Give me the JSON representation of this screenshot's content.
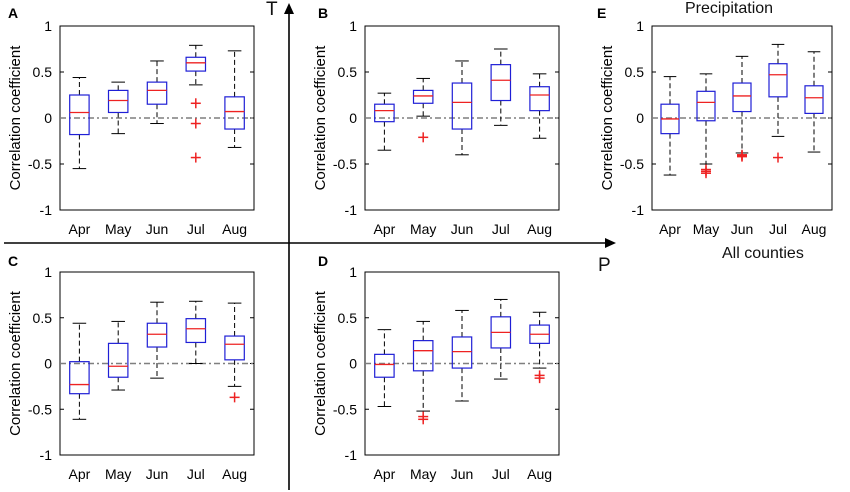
{
  "axis_labels": {
    "t": "T",
    "p": "P"
  },
  "annotations": {
    "precipitation": "Precipitation",
    "all_counties": "All counties"
  },
  "chart_data": [
    {
      "panel": "A",
      "type": "boxplot",
      "ylabel": "Correlation coefficient",
      "ylim": [
        -1,
        1
      ],
      "yticks": [
        -1,
        -0.5,
        0,
        0.5,
        1
      ],
      "categories": [
        "Apr",
        "May",
        "Jun",
        "Jul",
        "Aug"
      ],
      "reference_line": 0,
      "boxes": [
        {
          "whisker_low": -0.55,
          "q1": -0.18,
          "median": 0.06,
          "q3": 0.25,
          "whisker_high": 0.44,
          "outliers": []
        },
        {
          "whisker_low": -0.17,
          "q1": 0.06,
          "median": 0.19,
          "q3": 0.3,
          "whisker_high": 0.39,
          "outliers": []
        },
        {
          "whisker_low": -0.06,
          "q1": 0.15,
          "median": 0.3,
          "q3": 0.39,
          "whisker_high": 0.62,
          "outliers": []
        },
        {
          "whisker_low": 0.36,
          "q1": 0.51,
          "median": 0.6,
          "q3": 0.66,
          "whisker_high": 0.79,
          "outliers": [
            0.16,
            -0.06,
            -0.43
          ]
        },
        {
          "whisker_low": -0.32,
          "q1": -0.12,
          "median": 0.07,
          "q3": 0.23,
          "whisker_high": 0.73,
          "outliers": []
        }
      ]
    },
    {
      "panel": "B",
      "type": "boxplot",
      "ylabel": "Correlation coefficient",
      "ylim": [
        -1,
        1
      ],
      "yticks": [
        -1,
        -0.5,
        0,
        0.5,
        1
      ],
      "categories": [
        "Apr",
        "May",
        "Jun",
        "Jul",
        "Aug"
      ],
      "reference_line": 0,
      "boxes": [
        {
          "whisker_low": -0.35,
          "q1": -0.04,
          "median": 0.08,
          "q3": 0.15,
          "whisker_high": 0.27,
          "outliers": []
        },
        {
          "whisker_low": 0.02,
          "q1": 0.16,
          "median": 0.24,
          "q3": 0.3,
          "whisker_high": 0.43,
          "outliers": [
            -0.21
          ]
        },
        {
          "whisker_low": -0.4,
          "q1": -0.12,
          "median": 0.17,
          "q3": 0.38,
          "whisker_high": 0.62,
          "outliers": []
        },
        {
          "whisker_low": -0.08,
          "q1": 0.19,
          "median": 0.41,
          "q3": 0.58,
          "whisker_high": 0.75,
          "outliers": []
        },
        {
          "whisker_low": -0.22,
          "q1": 0.08,
          "median": 0.25,
          "q3": 0.34,
          "whisker_high": 0.48,
          "outliers": []
        }
      ]
    },
    {
      "panel": "C",
      "type": "boxplot",
      "ylabel": "Correlation coefficient",
      "ylim": [
        -1,
        1
      ],
      "yticks": [
        -1,
        -0.5,
        0,
        0.5,
        1
      ],
      "categories": [
        "Apr",
        "May",
        "Jun",
        "Jul",
        "Aug"
      ],
      "reference_line": 0,
      "boxes": [
        {
          "whisker_low": -0.61,
          "q1": -0.33,
          "median": -0.23,
          "q3": 0.02,
          "whisker_high": 0.44,
          "outliers": []
        },
        {
          "whisker_low": -0.29,
          "q1": -0.15,
          "median": -0.03,
          "q3": 0.22,
          "whisker_high": 0.46,
          "outliers": []
        },
        {
          "whisker_low": -0.16,
          "q1": 0.18,
          "median": 0.32,
          "q3": 0.44,
          "whisker_high": 0.67,
          "outliers": []
        },
        {
          "whisker_low": 0.0,
          "q1": 0.23,
          "median": 0.38,
          "q3": 0.49,
          "whisker_high": 0.68,
          "outliers": []
        },
        {
          "whisker_low": -0.25,
          "q1": 0.04,
          "median": 0.21,
          "q3": 0.3,
          "whisker_high": 0.66,
          "outliers": [
            -0.37
          ]
        }
      ]
    },
    {
      "panel": "D",
      "type": "boxplot",
      "ylabel": "Correlation coefficient",
      "ylim": [
        -1,
        1
      ],
      "yticks": [
        -1,
        -0.5,
        0,
        0.5,
        1
      ],
      "categories": [
        "Apr",
        "May",
        "Jun",
        "Jul",
        "Aug"
      ],
      "reference_line": 0,
      "boxes": [
        {
          "whisker_low": -0.47,
          "q1": -0.15,
          "median": -0.01,
          "q3": 0.1,
          "whisker_high": 0.37,
          "outliers": []
        },
        {
          "whisker_low": -0.52,
          "q1": -0.08,
          "median": 0.14,
          "q3": 0.25,
          "whisker_high": 0.46,
          "outliers": [
            -0.58,
            -0.61
          ]
        },
        {
          "whisker_low": -0.41,
          "q1": -0.05,
          "median": 0.13,
          "q3": 0.29,
          "whisker_high": 0.58,
          "outliers": []
        },
        {
          "whisker_low": -0.17,
          "q1": 0.17,
          "median": 0.34,
          "q3": 0.51,
          "whisker_high": 0.7,
          "outliers": []
        },
        {
          "whisker_low": -0.05,
          "q1": 0.22,
          "median": 0.32,
          "q3": 0.42,
          "whisker_high": 0.56,
          "outliers": [
            -0.13,
            -0.16
          ]
        }
      ]
    },
    {
      "panel": "E",
      "type": "boxplot",
      "ylabel": "Correlation coefficient",
      "ylim": [
        -1,
        1
      ],
      "yticks": [
        -1,
        -0.5,
        0,
        0.5,
        1
      ],
      "categories": [
        "Apr",
        "May",
        "Jun",
        "Jul",
        "Aug"
      ],
      "reference_line": 0,
      "boxes": [
        {
          "whisker_low": -0.62,
          "q1": -0.17,
          "median": -0.01,
          "q3": 0.15,
          "whisker_high": 0.45,
          "outliers": []
        },
        {
          "whisker_low": -0.5,
          "q1": -0.03,
          "median": 0.17,
          "q3": 0.29,
          "whisker_high": 0.48,
          "outliers": [
            -0.56,
            -0.58,
            -0.6
          ]
        },
        {
          "whisker_low": -0.38,
          "q1": 0.07,
          "median": 0.24,
          "q3": 0.38,
          "whisker_high": 0.67,
          "outliers": [
            -0.4,
            -0.41,
            -0.42
          ]
        },
        {
          "whisker_low": -0.2,
          "q1": 0.23,
          "median": 0.47,
          "q3": 0.59,
          "whisker_high": 0.8,
          "outliers": [
            -0.43
          ]
        },
        {
          "whisker_low": -0.37,
          "q1": 0.05,
          "median": 0.22,
          "q3": 0.35,
          "whisker_high": 0.72,
          "outliers": []
        }
      ]
    }
  ]
}
